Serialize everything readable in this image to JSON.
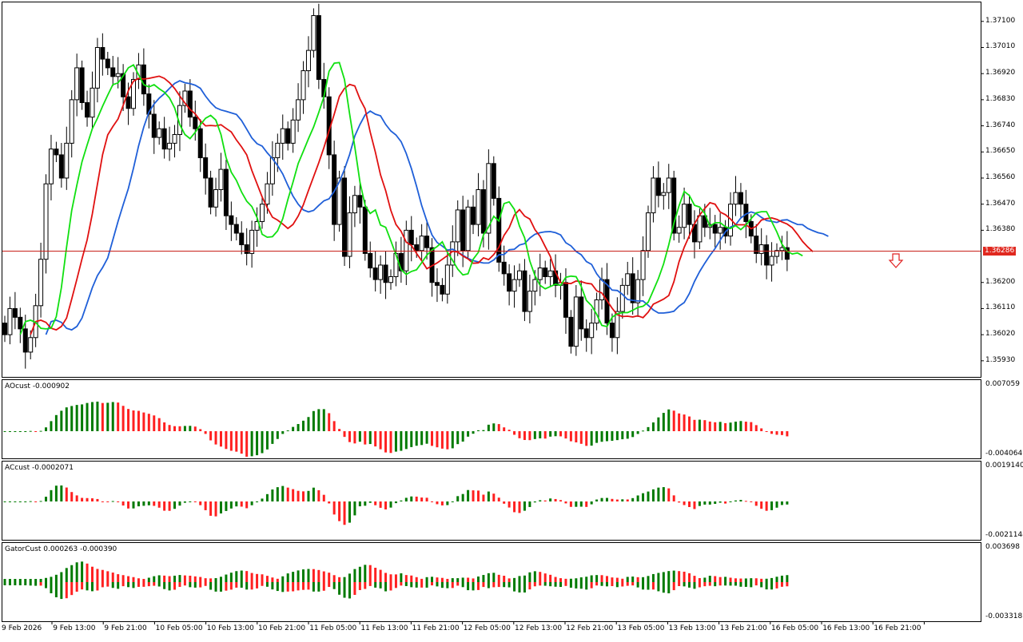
{
  "chart": {
    "current_price": "1.36286",
    "colors": {
      "bull_bar": "#007a00",
      "bear_bar": "#ff2020",
      "jaw": "#1f5fd8",
      "teeth": "#e01010",
      "lips": "#10e010",
      "bid_line": "#c8201a",
      "candle": "#000000"
    },
    "main_axis_labels": [
      "1.37100",
      "1.37010",
      "1.36920",
      "1.36830",
      "1.36740",
      "1.36650",
      "1.36560",
      "1.36470",
      "1.36380",
      "1.36200",
      "1.36110",
      "1.36020",
      "1.35930"
    ],
    "time_labels": [
      "9 Feb 2026",
      "9 Feb 13:00",
      "9 Feb 21:00",
      "10 Feb 05:00",
      "10 Feb 13:00",
      "10 Feb 21:00",
      "11 Feb 05:00",
      "11 Feb 13:00",
      "11 Feb 21:00",
      "12 Feb 05:00",
      "12 Feb 13:00",
      "12 Feb 21:00",
      "13 Feb 05:00",
      "13 Feb 13:00",
      "13 Feb 21:00",
      "16 Feb 05:00",
      "16 Feb 13:00",
      "16 Feb 21:00"
    ],
    "arrow_icon": "down-arrow-icon"
  },
  "panes": {
    "ao": {
      "title": "AOcust -0.000902",
      "max": "0.007059",
      "min": "-0.004064"
    },
    "ac": {
      "title": "ACcust -0.0002071",
      "max": "0.0019140",
      "min": "-0.0021144"
    },
    "gator": {
      "title": "GatorCust 0.000263 -0.000390",
      "max": "0.003698",
      "min": "-0.003318"
    }
  },
  "chart_data": {
    "type": "candlestick",
    "ylim": [
      1.3588,
      1.3716
    ],
    "closes": [
      1.3602,
      1.3611,
      1.3608,
      1.3604,
      1.3596,
      1.3601,
      1.3612,
      1.3628,
      1.3654,
      1.3666,
      1.3664,
      1.3656,
      1.3668,
      1.3683,
      1.3694,
      1.3682,
      1.3677,
      1.3687,
      1.3701,
      1.3697,
      1.3694,
      1.3691,
      1.3692,
      1.3684,
      1.368,
      1.369,
      1.3695,
      1.3685,
      1.3678,
      1.367,
      1.3673,
      1.3666,
      1.3668,
      1.3671,
      1.3681,
      1.3686,
      1.3677,
      1.3673,
      1.3663,
      1.3656,
      1.3646,
      1.3652,
      1.3659,
      1.3643,
      1.364,
      1.3637,
      1.3633,
      1.363,
      1.3638,
      1.3641,
      1.3647,
      1.3654,
      1.3663,
      1.3668,
      1.3673,
      1.3668,
      1.3676,
      1.3683,
      1.3693,
      1.37,
      1.3712,
      1.369,
      1.3684,
      1.3664,
      1.364,
      1.3656,
      1.3629,
      1.3644,
      1.365,
      1.3646,
      1.363,
      1.3625,
      1.3621,
      1.3626,
      1.362,
      1.3622,
      1.363,
      1.3624,
      1.3638,
      1.3633,
      1.3631,
      1.3636,
      1.3632,
      1.362,
      1.3619,
      1.3616,
      1.3626,
      1.3634,
      1.3645,
      1.3631,
      1.3646,
      1.364,
      1.3652,
      1.3637,
      1.3661,
      1.3649,
      1.3627,
      1.3623,
      1.3617,
      1.3621,
      1.3624,
      1.361,
      1.3617,
      1.3621,
      1.3625,
      1.3622,
      1.3624,
      1.3619,
      1.362,
      1.3608,
      1.3598,
      1.3615,
      1.3604,
      1.3601,
      1.3606,
      1.3614,
      1.3621,
      1.3606,
      1.3601,
      1.361,
      1.3619,
      1.3623,
      1.3613,
      1.3621,
      1.3631,
      1.3644,
      1.3656,
      1.365,
      1.3651,
      1.3656,
      1.3637,
      1.3639,
      1.3647,
      1.364,
      1.3634,
      1.3643,
      1.3639,
      1.364,
      1.3637,
      1.3639,
      1.3636,
      1.3647,
      1.3651,
      1.3647,
      1.3641,
      1.3636,
      1.363,
      1.3633,
      1.3626,
      1.3629,
      1.3631,
      1.3632,
      1.3628
    ]
  }
}
